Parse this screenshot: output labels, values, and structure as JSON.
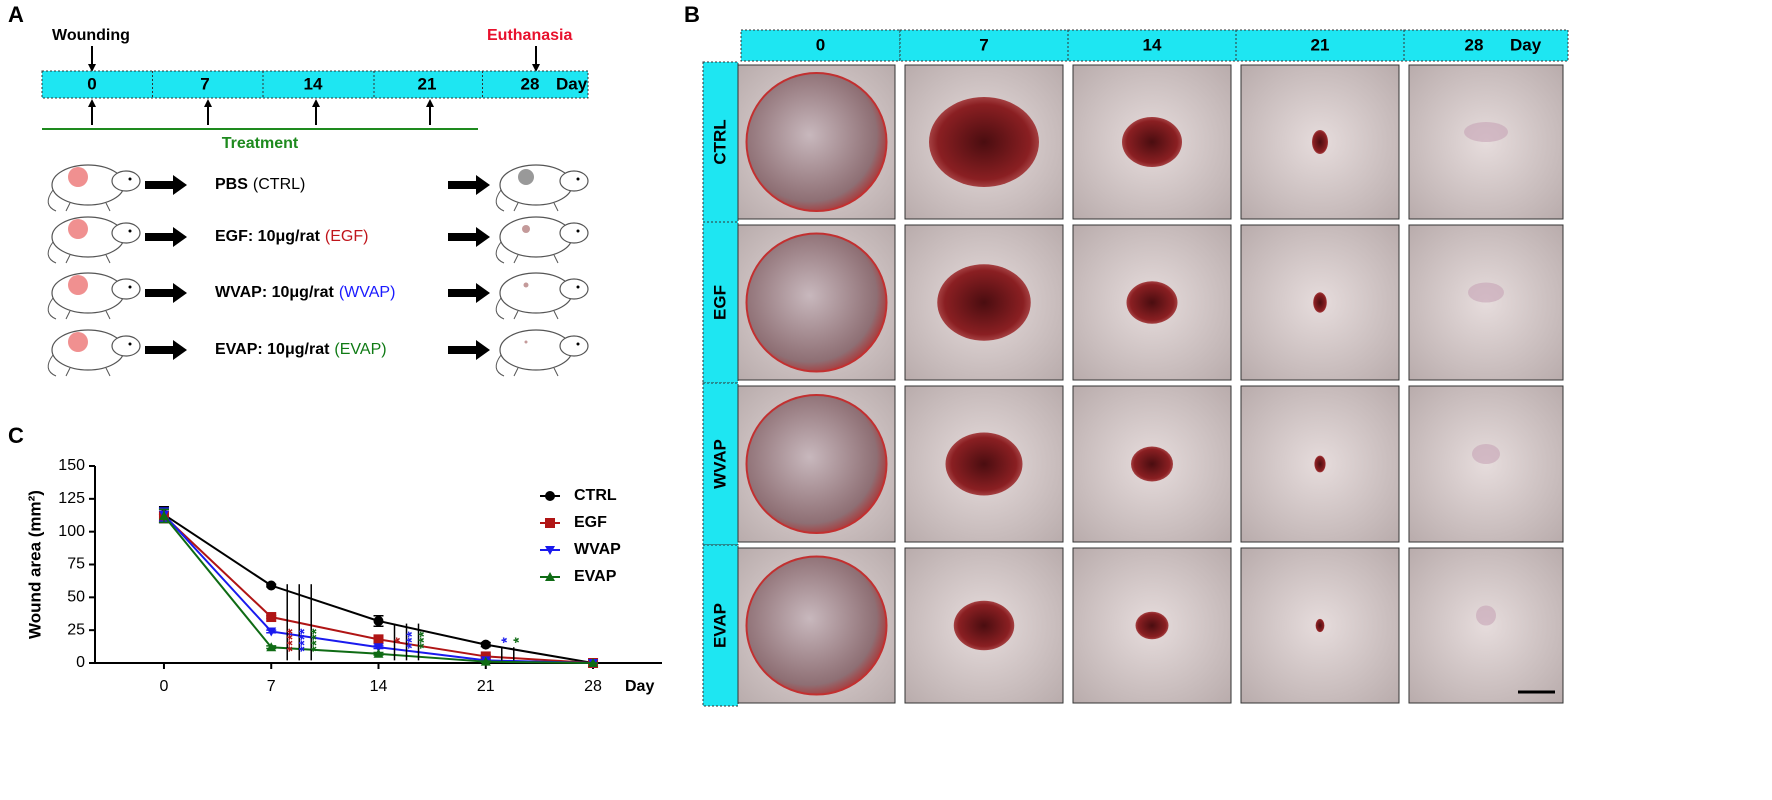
{
  "panel_a": {
    "label": "A",
    "wounding": "Wounding",
    "euthanasia": "Euthanasia",
    "timeline": [
      "0",
      "7",
      "14",
      "21",
      "28"
    ],
    "day": "Day",
    "treatment": "Treatment",
    "groups": [
      {
        "agent": "PBS",
        "code": "(CTRL)",
        "color": "#000000"
      },
      {
        "agent": "EGF: 10μg/rat",
        "code": "(EGF)",
        "color": "#c0151b"
      },
      {
        "agent": "WVAP: 10μg/rat",
        "code": "(WVAP)",
        "color": "#1a1aff"
      },
      {
        "agent": "EVAP: 10μg/rat",
        "code": "(EVAP)",
        "color": "#0f7a14"
      }
    ]
  },
  "panel_b": {
    "label": "B",
    "columns": [
      "0",
      "7",
      "14",
      "21",
      "28"
    ],
    "day": "Day",
    "rows": [
      "CTRL",
      "EGF",
      "WVAP",
      "EVAP"
    ]
  },
  "chart_data": {
    "type": "line",
    "label": "C",
    "y_label": "Wound area (mm²)",
    "x_label": "Day",
    "x": [
      0,
      7,
      14,
      21,
      28
    ],
    "xlim": [
      -4.5,
      32.5
    ],
    "xticks": [
      0,
      7,
      14,
      21,
      28
    ],
    "ylim": [
      0,
      150
    ],
    "yticks": [
      0,
      25,
      50,
      75,
      100,
      125,
      150
    ],
    "legend": "upper right",
    "series": [
      {
        "name": "CTRL",
        "color": "#000000",
        "marker": "circle",
        "values": [
          113,
          59,
          32,
          14,
          0
        ],
        "errors": [
          6,
          1,
          4,
          1.5,
          0
        ]
      },
      {
        "name": "EGF",
        "color": "#b01515",
        "marker": "square",
        "values": [
          112,
          35,
          18,
          5,
          0
        ],
        "errors": [
          5,
          1,
          1.5,
          1,
          0
        ]
      },
      {
        "name": "WVAP",
        "color": "#1a1aee",
        "marker": "triangle-down",
        "values": [
          113,
          24,
          12,
          2,
          0
        ],
        "errors": [
          5,
          1,
          1,
          0.5,
          0
        ]
      },
      {
        "name": "EVAP",
        "color": "#0f6b14",
        "marker": "triangle-up",
        "values": [
          112,
          12,
          7,
          1,
          0
        ],
        "errors": [
          5,
          1,
          1,
          0.5,
          0
        ]
      }
    ],
    "annotations": [
      {
        "x": 7,
        "text": "****",
        "color": "#b01515"
      },
      {
        "x": 7,
        "text": "****",
        "color": "#1a1aee"
      },
      {
        "x": 7,
        "text": "****",
        "color": "#0f6b14"
      },
      {
        "x": 14,
        "text": "*",
        "color": "#b01515"
      },
      {
        "x": 14,
        "text": "***",
        "color": "#1a1aee"
      },
      {
        "x": 14,
        "text": "***",
        "color": "#0f6b14"
      },
      {
        "x": 21,
        "text": "*",
        "color": "#1a1aee"
      },
      {
        "x": 21,
        "text": "*",
        "color": "#0f6b14"
      }
    ]
  }
}
